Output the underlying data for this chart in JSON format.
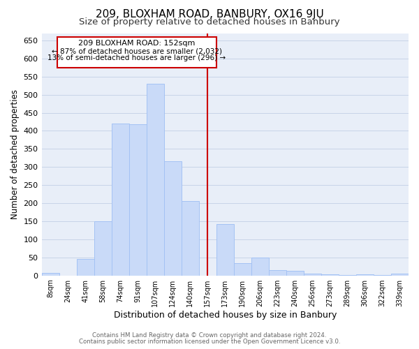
{
  "title": "209, BLOXHAM ROAD, BANBURY, OX16 9JU",
  "subtitle": "Size of property relative to detached houses in Banbury",
  "xlabel": "Distribution of detached houses by size in Banbury",
  "ylabel": "Number of detached properties",
  "bar_labels": [
    "8sqm",
    "24sqm",
    "41sqm",
    "58sqm",
    "74sqm",
    "91sqm",
    "107sqm",
    "124sqm",
    "140sqm",
    "157sqm",
    "173sqm",
    "190sqm",
    "206sqm",
    "223sqm",
    "240sqm",
    "256sqm",
    "273sqm",
    "289sqm",
    "306sqm",
    "322sqm",
    "339sqm"
  ],
  "bar_values": [
    8,
    0,
    45,
    150,
    420,
    418,
    530,
    315,
    205,
    0,
    143,
    35,
    50,
    15,
    13,
    5,
    3,
    2,
    3,
    2,
    5
  ],
  "bar_color": "#c9daf8",
  "bar_edge_color": "#a4c2f4",
  "vline_label": "157sqm",
  "vline_color": "#cc0000",
  "annotation_title": "209 BLOXHAM ROAD: 152sqm",
  "annotation_line1": "← 87% of detached houses are smaller (2,032)",
  "annotation_line2": "13% of semi-detached houses are larger (296) →",
  "annotation_box_color": "#ffffff",
  "annotation_box_edge": "#cc0000",
  "ylim": [
    0,
    670
  ],
  "yticks": [
    0,
    50,
    100,
    150,
    200,
    250,
    300,
    350,
    400,
    450,
    500,
    550,
    600,
    650
  ],
  "footer1": "Contains HM Land Registry data © Crown copyright and database right 2024.",
  "footer2": "Contains public sector information licensed under the Open Government Licence v3.0.",
  "bg_color": "#ffffff",
  "axes_bg_color": "#e8eef8",
  "grid_color": "#c8d4e8",
  "title_fontsize": 11,
  "subtitle_fontsize": 9.5,
  "ylabel_fontsize": 8.5,
  "xlabel_fontsize": 9
}
